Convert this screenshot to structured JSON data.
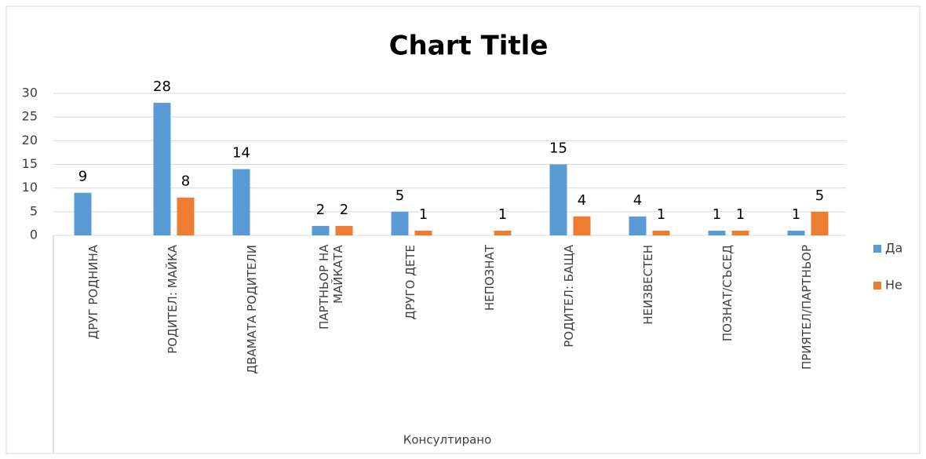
{
  "chart_data": {
    "type": "bar",
    "title": "Chart Title",
    "x_label": "Консултирано",
    "categories": [
      "ДРУГ РОДНИНА",
      "РОДИТЕЛ:  МАЙКА",
      "ДВАМАТА РОДИТЕЛИ",
      "ПАРТНЬОР НА МАЙКАТА",
      "ДРУГО ДЕТЕ",
      "НЕПОЗНАТ",
      "РОДИТЕЛ:  БАЩА",
      "НЕИЗВЕСТЕН",
      "ПОЗНАТ/СЪСЕД",
      "ПРИЯТЕЛ/ПАРТНЬОР"
    ],
    "series": [
      {
        "name": "Да",
        "color": "#5b9bd5",
        "values": [
          9,
          28,
          14,
          2,
          5,
          null,
          15,
          4,
          1,
          1
        ]
      },
      {
        "name": "Не",
        "color": "#ed7d31",
        "values": [
          null,
          8,
          null,
          2,
          1,
          1,
          4,
          1,
          1,
          5
        ]
      }
    ],
    "ylim": [
      0,
      30
    ],
    "yticks": [
      0,
      5,
      10,
      15,
      20,
      25,
      30
    ],
    "grid": true,
    "legend": "right"
  }
}
